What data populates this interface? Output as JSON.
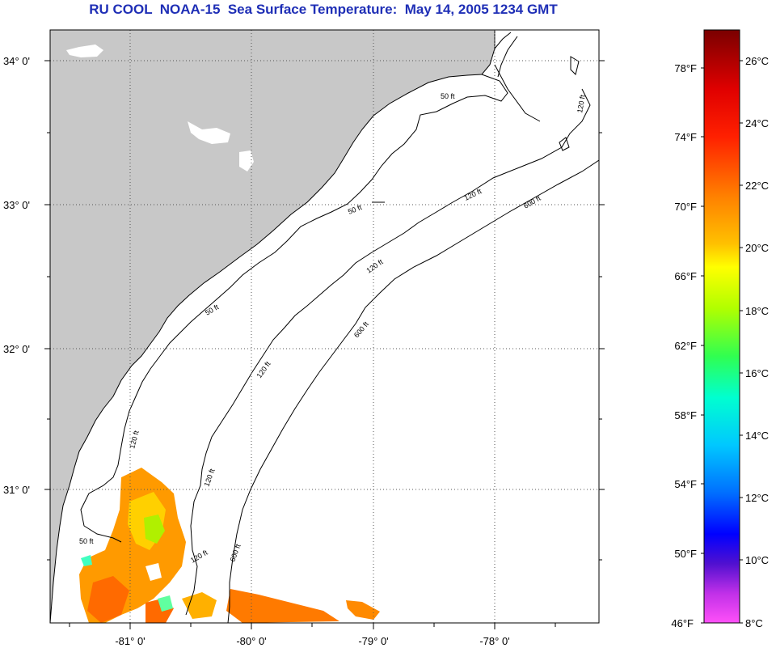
{
  "title": "RU COOL  NOAA-15  Sea Surface Temperature:  May 14, 2005 1234 GMT",
  "map": {
    "lat_ticks": [
      "34° 0'",
      "33° 0'",
      "32° 0'",
      "31° 0'"
    ],
    "lon_ticks": [
      "-81° 0'",
      "-80° 0'",
      "-79° 0'",
      "-78° 0'"
    ],
    "contour_labels": [
      "50 ft",
      "50 ft",
      "50 ft",
      "50 ft",
      "120 ft",
      "120 ft",
      "120 ft",
      "120 ft",
      "120 ft",
      "120 ft",
      "120 ft",
      "600 ft",
      "600 ft",
      "600 ft"
    ],
    "colors": {
      "land": "#c8c8c8",
      "ocean": "#ffffff",
      "title": "#1f2fb6",
      "contour": "#000000"
    }
  },
  "colorbar": {
    "fahrenheit_labels": [
      "78°F",
      "74°F",
      "70°F",
      "66°F",
      "62°F",
      "58°F",
      "54°F",
      "50°F",
      "46°F"
    ],
    "celsius_labels": [
      "26°C",
      "24°C",
      "22°C",
      "20°C",
      "18°C",
      "16°C",
      "14°C",
      "12°C",
      "10°C",
      "8°C"
    ],
    "gradient_colors": [
      "#7a0000",
      "#d00000",
      "#ff0000",
      "#ff5a00",
      "#ff9a00",
      "#ffd000",
      "#ffff00",
      "#a0ff00",
      "#30ff50",
      "#00ffc0",
      "#00e8ff",
      "#00a0ff",
      "#0040ff",
      "#0000ff",
      "#4010e0",
      "#a020e0",
      "#ff40ff"
    ]
  }
}
